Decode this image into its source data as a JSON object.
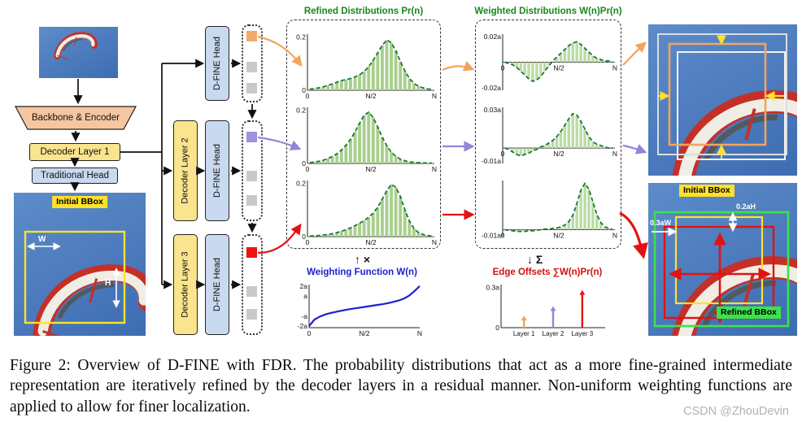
{
  "pipeline": {
    "backbone": "Backbone & Encoder",
    "decoder_layer_1": "Decoder Layer 1",
    "decoder_layer_2": "Decoder Layer 2",
    "decoder_layer_3": "Decoder Layer 3",
    "traditional_head": "Traditional Head",
    "dfine_head": "D-FINE Head"
  },
  "left_image": {
    "initial_bbox_label": "Initial BBox",
    "width_label": "W",
    "height_label": "H"
  },
  "right_bottom_image": {
    "initial_bbox_label": "Initial BBox",
    "refined_bbox_label": "Refined BBox",
    "offset_height_label": "0.2aH",
    "offset_width_label": "0.3aW"
  },
  "sections": {
    "refined_title": "Refined Distributions Pr(n)",
    "weighted_title": "Weighted Distributions W(n)Pr(n)",
    "weighting_title": "Weighting Function W(n)",
    "offsets_title": "Edge Offsets ∑W(n)Pr(n)",
    "multiply_symbol": "↑ ×",
    "sum_symbol": "↓ Σ"
  },
  "colors": {
    "layer1": "#F2A45C",
    "layer2": "#8F86D8",
    "layer3": "#E31212",
    "distribution_green": "#1B7837",
    "bar_green": "#A9CF8E",
    "accent_yellow": "#FFE12B",
    "refined_green": "#3BE34B"
  },
  "caption": "Figure 2: Overview of D-FINE with FDR. The probability distributions that act as a more fine-grained intermediate representation are iteratively refined by the decoder layers in a residual manner. Non-uniform weighting functions are applied to allow for finer localization.",
  "watermark": "CSDN @ZhouDevin",
  "chart_data": [
    {
      "id": "refined-1",
      "type": "hist",
      "ymin": 0,
      "ymax": 0.21,
      "ml": 24,
      "axis": "zero",
      "y_ticks": [
        {
          "t": "0.2",
          "v": 0.2
        },
        {
          "t": "0",
          "v": 0
        }
      ],
      "x_ticks": [
        {
          "t": "0",
          "f": 0
        },
        {
          "t": "N/2",
          "f": 0.5
        },
        {
          "t": "N",
          "f": 1
        }
      ],
      "bar_color": "#A9CF8E",
      "line_color": "#1B7837",
      "values": [
        0.004,
        0.006,
        0.009,
        0.013,
        0.018,
        0.024,
        0.03,
        0.036,
        0.04,
        0.044,
        0.05,
        0.058,
        0.07,
        0.088,
        0.112,
        0.14,
        0.168,
        0.188,
        0.178,
        0.148,
        0.108,
        0.072,
        0.044,
        0.026,
        0.015,
        0.009,
        0.005,
        0.003
      ]
    },
    {
      "id": "refined-2",
      "type": "hist",
      "ymin": 0,
      "ymax": 0.21,
      "ml": 24,
      "axis": "zero",
      "y_ticks": [
        {
          "t": "0.2",
          "v": 0.2
        },
        {
          "t": "0",
          "v": 0
        }
      ],
      "x_ticks": [
        {
          "t": "0",
          "f": 0
        },
        {
          "t": "N/2",
          "f": 0.5
        },
        {
          "t": "N",
          "f": 1
        }
      ],
      "bar_color": "#A9CF8E",
      "line_color": "#1B7837",
      "values": [
        0.003,
        0.005,
        0.008,
        0.012,
        0.018,
        0.026,
        0.036,
        0.05,
        0.068,
        0.09,
        0.118,
        0.15,
        0.18,
        0.192,
        0.172,
        0.136,
        0.098,
        0.066,
        0.042,
        0.026,
        0.016,
        0.01,
        0.006,
        0.004,
        0.003,
        0.002,
        0.002,
        0.001
      ]
    },
    {
      "id": "refined-3",
      "type": "hist",
      "ymin": 0,
      "ymax": 0.21,
      "ml": 24,
      "axis": "zero",
      "y_ticks": [
        {
          "t": "0.2",
          "v": 0.2
        },
        {
          "t": "0",
          "v": 0
        }
      ],
      "x_ticks": [
        {
          "t": "0",
          "f": 0
        },
        {
          "t": "N/2",
          "f": 0.5
        },
        {
          "t": "N",
          "f": 1
        }
      ],
      "bar_color": "#A9CF8E",
      "line_color": "#1B7837",
      "values": [
        0.002,
        0.003,
        0.004,
        0.006,
        0.008,
        0.011,
        0.015,
        0.02,
        0.026,
        0.033,
        0.041,
        0.05,
        0.06,
        0.072,
        0.088,
        0.11,
        0.14,
        0.172,
        0.195,
        0.185,
        0.15,
        0.1,
        0.058,
        0.03,
        0.015,
        0.008,
        0.004,
        0.002
      ]
    },
    {
      "id": "weighted-1",
      "type": "hist",
      "ymin": -0.022,
      "ymax": 0.022,
      "ml": 32,
      "axis": "zero",
      "y_ticks": [
        {
          "t": "0.02a",
          "v": 0.02
        },
        {
          "t": "-0.02a",
          "v": -0.02
        }
      ],
      "x_ticks": [
        {
          "t": "0",
          "f": 0
        },
        {
          "t": "N/2",
          "f": 0.5
        },
        {
          "t": "N",
          "f": 1
        }
      ],
      "bar_color": "#BBDCA5",
      "line_color": "#1B7837",
      "values": [
        0,
        -0.001,
        -0.002,
        -0.004,
        -0.007,
        -0.01,
        -0.013,
        -0.015,
        -0.014,
        -0.011,
        -0.007,
        -0.003,
        0.001,
        0.004,
        0.007,
        0.01,
        0.013,
        0.015,
        0.016,
        0.014,
        0.011,
        0.008,
        0.005,
        0.003,
        0.002,
        0.001,
        0.001,
        0
      ]
    },
    {
      "id": "weighted-2",
      "type": "hist",
      "ymin": -0.012,
      "ymax": 0.032,
      "ml": 32,
      "axis": "zero",
      "y_ticks": [
        {
          "t": "0.03a",
          "v": 0.03
        },
        {
          "t": "-0.01a",
          "v": -0.01
        }
      ],
      "x_ticks": [
        {
          "t": "0",
          "f": 0
        },
        {
          "t": "N/2",
          "f": 0.5
        },
        {
          "t": "N",
          "f": 1
        }
      ],
      "bar_color": "#BBDCA5",
      "line_color": "#1B7837",
      "values": [
        0,
        -0.001,
        -0.003,
        -0.005,
        -0.006,
        -0.005,
        -0.004,
        -0.002,
        -0.001,
        0.001,
        0.002,
        0.004,
        0.006,
        0.009,
        0.013,
        0.018,
        0.023,
        0.027,
        0.026,
        0.021,
        0.015,
        0.009,
        0.005,
        0.003,
        0.002,
        0.001,
        0,
        0
      ]
    },
    {
      "id": "weighted-3",
      "type": "hist",
      "ymin": -0.012,
      "ymax": 0.085,
      "ml": 32,
      "axis": "zero",
      "y_ticks": [
        {
          "t": "-0.01a",
          "v": -0.01
        }
      ],
      "x_ticks": [
        {
          "t": "0",
          "f": 0
        },
        {
          "t": "N/2",
          "f": 0.5
        },
        {
          "t": "N",
          "f": 1
        }
      ],
      "bar_color": "#BBDCA5",
      "line_color": "#1B7837",
      "values": [
        0,
        -0.001,
        -0.002,
        -0.003,
        -0.003,
        -0.003,
        -0.002,
        -0.002,
        -0.001,
        0,
        0.001,
        0.001,
        0.002,
        0.003,
        0.005,
        0.008,
        0.014,
        0.025,
        0.045,
        0.068,
        0.08,
        0.07,
        0.048,
        0.026,
        0.012,
        0.005,
        0.002,
        0
      ]
    },
    {
      "id": "weighting",
      "type": "curve",
      "ymin": -2.15,
      "ymax": 2.15,
      "ml": 22,
      "axis": "bottom",
      "y_ticks": [
        {
          "t": "2a",
          "v": 2
        },
        {
          "t": "a",
          "v": 1
        },
        {
          "t": "-a",
          "v": -1
        },
        {
          "t": "-2a",
          "v": -2
        }
      ],
      "x_ticks": [
        {
          "t": "0",
          "f": 0
        },
        {
          "t": "N/2",
          "f": 0.5
        },
        {
          "t": "N",
          "f": 1
        }
      ],
      "line_color": "#2020CC",
      "values": [
        -2,
        -1.35,
        -1.05,
        -0.85,
        -0.7,
        -0.58,
        -0.47,
        -0.37,
        -0.28,
        -0.2,
        -0.12,
        -0.04,
        0.04,
        0.12,
        0.2,
        0.3,
        0.42,
        0.56,
        0.75,
        1.05,
        1.5,
        2.0
      ]
    },
    {
      "id": "offsets",
      "type": "arrows",
      "ymin": 0,
      "ymax": 0.32,
      "ml": 26,
      "axis": "bottom",
      "y_ticks": [
        {
          "t": "0.3a",
          "v": 0.3
        },
        {
          "t": "0",
          "v": 0
        }
      ],
      "x_ticks": [],
      "arrows": [
        {
          "label": "Layer 1",
          "value": 0.09,
          "color": "#F2A45C"
        },
        {
          "label": "Layer 2",
          "value": 0.16,
          "color": "#8F86D8"
        },
        {
          "label": "Layer 3",
          "value": 0.28,
          "color": "#E31212"
        }
      ]
    }
  ]
}
